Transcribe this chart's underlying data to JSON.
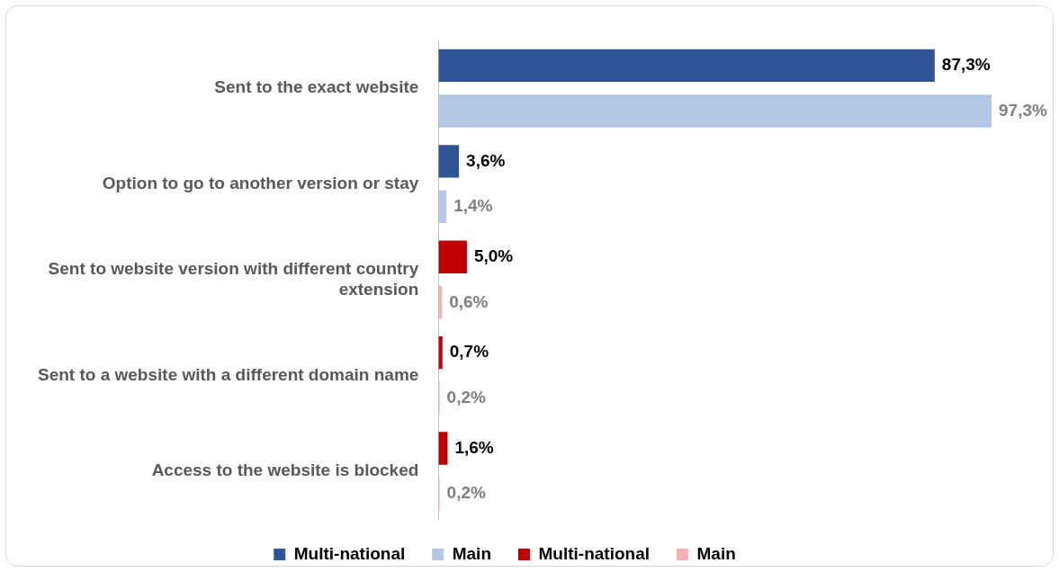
{
  "chart_data": {
    "type": "bar",
    "orientation": "horizontal",
    "categories": [
      "Sent to the exact website",
      "Option to go to another version or stay",
      "Sent to website version with different country extension",
      "Sent to a website with a different domain name",
      "Access to the website is blocked"
    ],
    "series": [
      {
        "name": "Multi-national",
        "color": "#2f5597",
        "values": [
          87.3,
          3.6,
          null,
          null,
          null
        ],
        "value_labels": [
          "87,3%",
          "3,6%",
          null,
          null,
          null
        ]
      },
      {
        "name": "Main",
        "color": "#b4c7e7",
        "values": [
          97.3,
          1.4,
          null,
          null,
          null
        ],
        "value_labels": [
          "97,3%",
          "1,4%",
          null,
          null,
          null
        ]
      },
      {
        "name": "Multi-national",
        "color": "#c00000",
        "values": [
          null,
          null,
          5.0,
          0.7,
          1.6
        ],
        "value_labels": [
          null,
          null,
          "5,0%",
          "0,7%",
          "1,6%"
        ]
      },
      {
        "name": "Main",
        "color": "#f4b1b1",
        "values": [
          null,
          null,
          0.6,
          0.2,
          0.2
        ],
        "value_labels": [
          null,
          null,
          "0,6%",
          "0,2%",
          "0,2%"
        ]
      }
    ],
    "legend": "bottom"
  }
}
